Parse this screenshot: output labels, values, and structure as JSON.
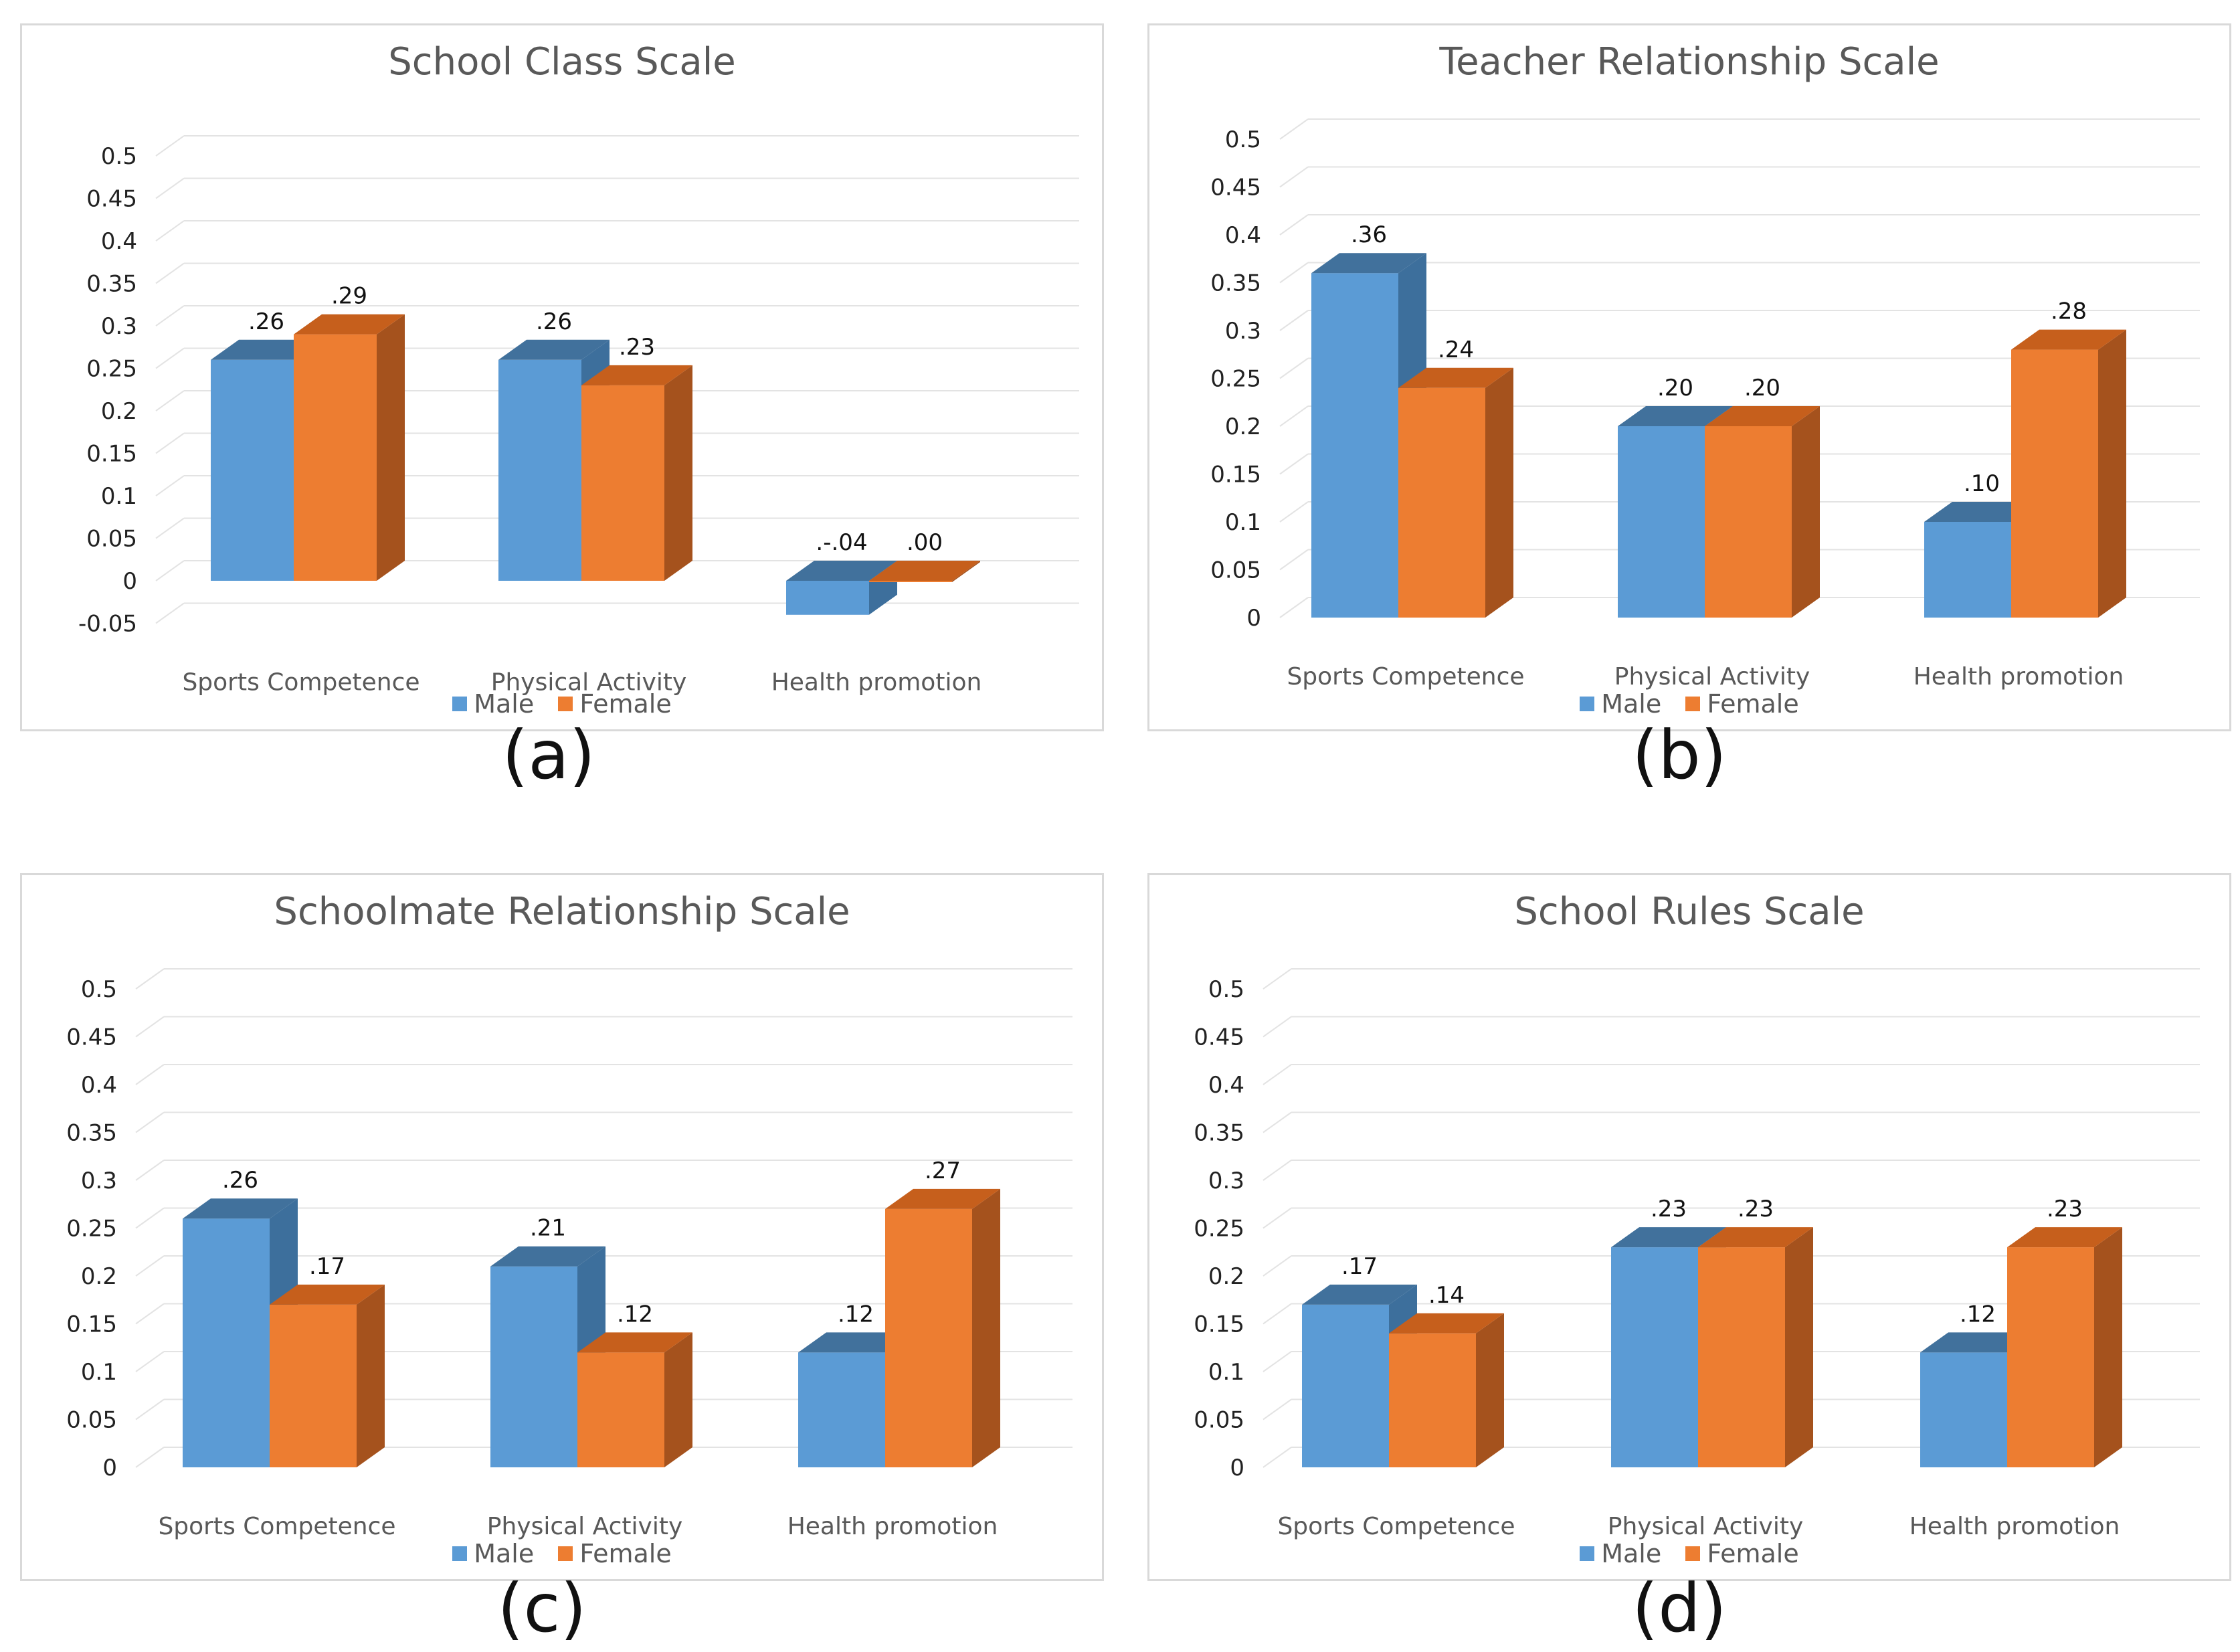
{
  "colors": {
    "male": "#5b9bd5",
    "male_side": "#3d6f9c",
    "male_top": "#41719c",
    "female": "#ed7d31",
    "female_side": "#a5521d",
    "female_top": "#c65f1c",
    "grid": "#e3e3e3",
    "text": "#595959",
    "label": "#222222"
  },
  "legend": {
    "male": "Male",
    "female": "Female"
  },
  "chart_data": [
    {
      "id": "a",
      "type": "bar",
      "caption": "(a)",
      "title": "School Class Scale",
      "categories": [
        "Sports Competence",
        "Physical Activity",
        "Health promotion"
      ],
      "series": [
        {
          "name": "Male",
          "values": [
            0.26,
            0.26,
            -0.04
          ],
          "labels": [
            ".26",
            ".26",
            ".-.04"
          ]
        },
        {
          "name": "Female",
          "values": [
            0.29,
            0.23,
            0.0
          ],
          "labels": [
            ".29",
            ".23",
            ".00"
          ]
        }
      ],
      "yticks": [
        "0.5",
        "0.45",
        "0.4",
        "0.35",
        "0.3",
        "0.25",
        "0.2",
        "0.15",
        "0.1",
        "0.05",
        "0",
        "-0.05"
      ],
      "ylim": [
        -0.05,
        0.5
      ]
    },
    {
      "id": "b",
      "type": "bar",
      "caption": "(b)",
      "title": "Teacher Relationship Scale",
      "categories": [
        "Sports Competence",
        "Physical Activity",
        "Health promotion"
      ],
      "series": [
        {
          "name": "Male",
          "values": [
            0.36,
            0.2,
            0.1
          ],
          "labels": [
            ".36",
            ".20",
            ".10"
          ]
        },
        {
          "name": "Female",
          "values": [
            0.24,
            0.2,
            0.28
          ],
          "labels": [
            ".24",
            ".20",
            ".28"
          ]
        }
      ],
      "yticks": [
        "0.5",
        "0.45",
        "0.4",
        "0.35",
        "0.3",
        "0.25",
        "0.2",
        "0.15",
        "0.1",
        "0.05",
        "0"
      ],
      "ylim": [
        0,
        0.5
      ]
    },
    {
      "id": "c",
      "type": "bar",
      "caption": "(c)",
      "title": "Schoolmate Relationship Scale",
      "categories": [
        "Sports Competence",
        "Physical Activity",
        "Health promotion"
      ],
      "series": [
        {
          "name": "Male",
          "values": [
            0.26,
            0.21,
            0.12
          ],
          "labels": [
            ".26",
            ".21",
            ".12"
          ]
        },
        {
          "name": "Female",
          "values": [
            0.17,
            0.12,
            0.27
          ],
          "labels": [
            ".17",
            ".12",
            ".27"
          ]
        }
      ],
      "yticks": [
        "0.5",
        "0.45",
        "0.4",
        "0.35",
        "0.3",
        "0.25",
        "0.2",
        "0.15",
        "0.1",
        "0.05",
        "0"
      ],
      "ylim": [
        0,
        0.5
      ]
    },
    {
      "id": "d",
      "type": "bar",
      "caption": "(d)",
      "title": "School Rules Scale",
      "categories": [
        "Sports Competence",
        "Physical Activity",
        "Health promotion"
      ],
      "series": [
        {
          "name": "Male",
          "values": [
            0.17,
            0.23,
            0.12
          ],
          "labels": [
            ".17",
            ".23",
            ".12"
          ]
        },
        {
          "name": "Female",
          "values": [
            0.14,
            0.23,
            0.23
          ],
          "labels": [
            ".14",
            ".23",
            ".23"
          ]
        }
      ],
      "yticks": [
        "0.5",
        "0.45",
        "0.4",
        "0.35",
        "0.3",
        "0.25",
        "0.2",
        "0.15",
        "0.1",
        "0.05",
        "0"
      ],
      "ylim": [
        0,
        0.5
      ]
    }
  ]
}
